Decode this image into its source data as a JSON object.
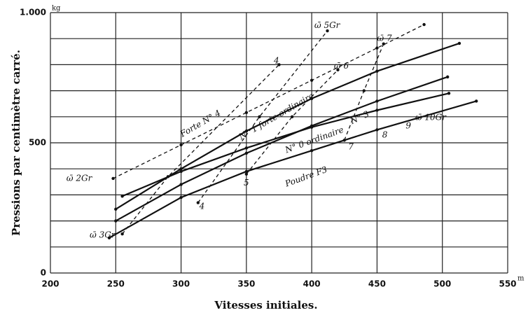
{
  "chart_data": {
    "type": "line",
    "y_label": "Pressions par centimètre carré.",
    "x_label": "Vitesses initiales.",
    "x_unit": "m",
    "y_unit": "kg",
    "xlim": [
      200,
      550
    ],
    "xticks": [
      200,
      250,
      300,
      350,
      400,
      450,
      500,
      550
    ],
    "ylim": [
      0,
      1000
    ],
    "yticks": [
      0,
      500,
      {
        "value": 1000,
        "label": "1.000"
      }
    ],
    "ygrid": [
      0,
      100,
      200,
      300,
      400,
      500,
      600,
      700,
      800,
      900,
      1000
    ],
    "grid": true,
    "color": "#111111",
    "series": [
      {
        "name": "Forte N° 4",
        "dashed": true,
        "x": [
          248,
          300,
          350,
          400,
          450,
          486
        ],
        "values": [
          363,
          492,
          616,
          740,
          864,
          954
        ]
      },
      {
        "name": "N° 1 forte ordinaire",
        "dashed": false,
        "x": [
          250,
          300,
          350,
          400,
          450,
          513
        ],
        "values": [
          245,
          400,
          545,
          670,
          775,
          882
        ]
      },
      {
        "name": "N° 3",
        "dashed": false,
        "x": [
          250,
          300,
          350,
          400,
          450,
          504
        ],
        "values": [
          200,
          340,
          460,
          565,
          660,
          753
        ]
      },
      {
        "name": "N° 0 ordinaire",
        "dashed": false,
        "x": [
          255,
          300,
          350,
          400,
          450,
          505
        ],
        "values": [
          295,
          390,
          480,
          560,
          625,
          690
        ]
      },
      {
        "name": "Poudre F3",
        "dashed": false,
        "x": [
          245,
          300,
          350,
          400,
          450,
          526
        ],
        "values": [
          135,
          290,
          390,
          470,
          550,
          660
        ]
      },
      {
        "name": "ω̄ 3Gr",
        "dashed": true,
        "x": [
          255,
          290,
          375
        ],
        "values": [
          150,
          370,
          800
        ]
      },
      {
        "name": "ω̄ 5Gr",
        "dashed": true,
        "x": [
          313,
          360,
          412
        ],
        "values": [
          270,
          600,
          930
        ]
      },
      {
        "name": "ω̄ 6",
        "dashed": true,
        "x": [
          350,
          385,
          420
        ],
        "values": [
          380,
          600,
          780
        ]
      },
      {
        "name": "ω̄ 7",
        "dashed": true,
        "x": [
          425,
          440,
          455
        ],
        "values": [
          510,
          700,
          880
        ]
      }
    ],
    "annotations": [
      "ω̄ 2Gr",
      "4",
      "4",
      "5",
      "7",
      "8",
      "9",
      "ω̄ 10Gr"
    ]
  }
}
